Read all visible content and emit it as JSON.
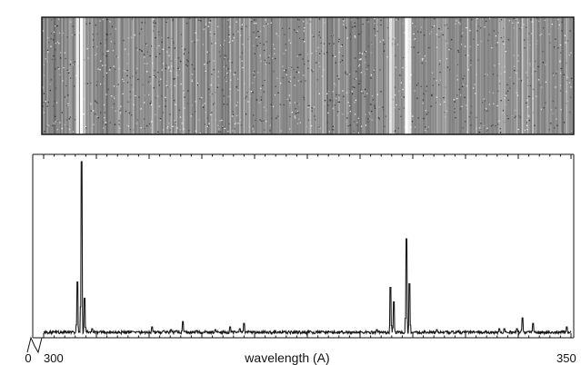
{
  "colors": {
    "background": "#ffffff",
    "ink": "#111111",
    "detector_base": "#8c8c8c",
    "detector_border": "#1a1a1a",
    "spectrum_line": "#1a1a1a"
  },
  "chart_data": {
    "type": "line",
    "title": "",
    "xlabel": "wavelength (A)",
    "ylabel": "",
    "xlim": [
      300,
      350
    ],
    "ylim": [
      0,
      100
    ],
    "x_tick_labels": [
      {
        "value": 300,
        "label": "300"
      },
      {
        "value": 350,
        "label": "350"
      }
    ],
    "y_tick_labels": [
      {
        "value": 0,
        "label": "0"
      }
    ],
    "grid": false,
    "legend": "none",
    "panels": [
      "detector image (2-D spectrum)",
      "extracted 1-D spectrum"
    ],
    "series": [
      {
        "baseline": 3,
        "peaks": [
          {
            "x": 303.2,
            "y": 31
          },
          {
            "x": 303.6,
            "y": 98
          },
          {
            "x": 303.9,
            "y": 22
          },
          {
            "x": 304.6,
            "y": 5
          },
          {
            "x": 308.5,
            "y": 3.5
          },
          {
            "x": 310.3,
            "y": 6
          },
          {
            "x": 311.4,
            "y": 4
          },
          {
            "x": 312.1,
            "y": 4.5
          },
          {
            "x": 312.6,
            "y": 4
          },
          {
            "x": 313.2,
            "y": 9
          },
          {
            "x": 314.5,
            "y": 4
          },
          {
            "x": 315.4,
            "y": 3.5
          },
          {
            "x": 316.3,
            "y": 4.5
          },
          {
            "x": 317.7,
            "y": 6
          },
          {
            "x": 318.6,
            "y": 5
          },
          {
            "x": 319.0,
            "y": 8
          },
          {
            "x": 319.5,
            "y": 3.5
          },
          {
            "x": 325.3,
            "y": 3.8
          },
          {
            "x": 326.5,
            "y": 3.5
          },
          {
            "x": 331.6,
            "y": 4.5
          },
          {
            "x": 332.9,
            "y": 28
          },
          {
            "x": 333.2,
            "y": 20
          },
          {
            "x": 334.4,
            "y": 55
          },
          {
            "x": 334.7,
            "y": 30
          },
          {
            "x": 337.3,
            "y": 4.5
          },
          {
            "x": 338.1,
            "y": 3.5
          },
          {
            "x": 340.2,
            "y": 3.5
          },
          {
            "x": 341.0,
            "y": 3.2
          },
          {
            "x": 343.2,
            "y": 5
          },
          {
            "x": 343.7,
            "y": 5
          },
          {
            "x": 344.9,
            "y": 5
          },
          {
            "x": 345.4,
            "y": 11
          },
          {
            "x": 345.9,
            "y": 3.5
          },
          {
            "x": 346.4,
            "y": 8
          },
          {
            "x": 349.6,
            "y": 6
          }
        ]
      }
    ]
  }
}
